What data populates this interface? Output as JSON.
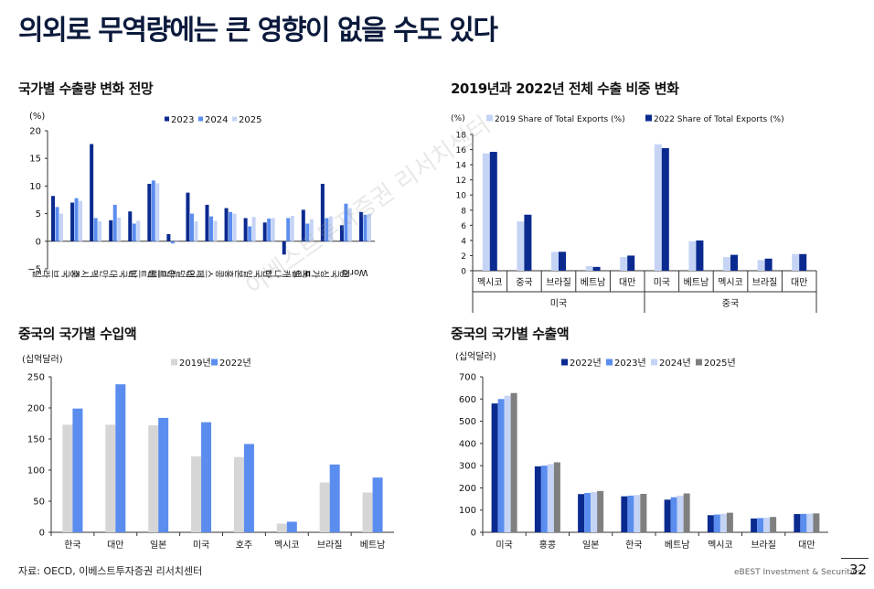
{
  "page": {
    "title": "의외로 무역량에는 큰 영향이 없을 수도 있다",
    "source": "자료: OECD, 이베스트투자증권 리서치센터",
    "brand": "eBEST Investment & Securities",
    "page_number": "32",
    "watermark": "이베스트투자증권 리서치센터"
  },
  "chart_data": [
    {
      "type": "bar",
      "title": "국가별 수출량 변화 전망",
      "ylabel": "(%)",
      "ylim": [
        -5,
        20
      ],
      "yticks": [
        -5,
        0,
        5,
        10,
        15,
        20
      ],
      "categories": [
        "브라질",
        "중국",
        "멕시코",
        "대만",
        "미국",
        "베트남",
        "아르헨",
        "네덜란드",
        "스페인",
        "홍콩",
        "일본",
        "한국",
        "캐나다",
        "독일",
        "싱가포르",
        "영국",
        "World"
      ],
      "series": [
        {
          "name": "2023",
          "color": "#0a2a8f",
          "values": [
            8.2,
            7.0,
            17.6,
            3.8,
            5.4,
            10.4,
            1.3,
            8.8,
            6.6,
            6.0,
            4.2,
            3.4,
            -2.4,
            5.7,
            10.4,
            2.9,
            5.3
          ]
        },
        {
          "name": "2024",
          "color": "#5b8def",
          "values": [
            6.2,
            7.8,
            4.2,
            6.6,
            3.2,
            11.0,
            -0.4,
            5.0,
            4.5,
            5.3,
            2.7,
            4.1,
            4.2,
            3.2,
            4.2,
            6.8,
            4.8
          ]
        },
        {
          "name": "2025",
          "color": "#c5d4f5",
          "values": [
            5.0,
            7.3,
            3.6,
            4.3,
            3.7,
            10.5,
            -0.2,
            3.6,
            3.7,
            5.0,
            4.4,
            4.2,
            4.6,
            4.0,
            4.5,
            6.0,
            5.0
          ]
        }
      ]
    },
    {
      "type": "bar",
      "title": "2019년과 2022년 전체 수출 비중 변화",
      "ylabel": "(%)",
      "ylim": [
        0,
        18
      ],
      "yticks": [
        0,
        2,
        4,
        6,
        8,
        10,
        12,
        14,
        16,
        18
      ],
      "categories": [
        "멕시코",
        "중국",
        "브라질",
        "베트남",
        "대만",
        "미국",
        "베트남",
        "멕시코",
        "브라질",
        "대만"
      ],
      "groups": [
        {
          "label": "미국",
          "categories": [
            "멕시코",
            "중국",
            "브라질",
            "베트남",
            "대만"
          ]
        },
        {
          "label": "중국",
          "categories": [
            "미국",
            "베트남",
            "멕시코",
            "브라질",
            "대만"
          ]
        }
      ],
      "series": [
        {
          "name": "2019 Share of Total Exports (%)",
          "color": "#c5d4f5",
          "values": [
            15.5,
            6.5,
            2.5,
            0.6,
            1.8,
            16.7,
            3.9,
            1.8,
            1.4,
            2.2
          ]
        },
        {
          "name": "2022 Share of Total Exports (%)",
          "color": "#0a2a8f",
          "values": [
            15.7,
            7.4,
            2.5,
            0.5,
            2.0,
            16.2,
            4.0,
            2.1,
            1.6,
            2.2
          ]
        }
      ]
    },
    {
      "type": "bar",
      "title": "중국의 국가별 수입액",
      "ylabel": "(십억달러)",
      "ylim": [
        0,
        250
      ],
      "yticks": [
        0,
        50,
        100,
        150,
        200,
        250
      ],
      "categories": [
        "한국",
        "대만",
        "일본",
        "미국",
        "호주",
        "멕시코",
        "브라질",
        "베트남"
      ],
      "series": [
        {
          "name": "2019년",
          "color": "#d6d6d6",
          "values": [
            173,
            173,
            172,
            122,
            121,
            14,
            80,
            64
          ]
        },
        {
          "name": "2022년",
          "color": "#5b8def",
          "values": [
            199,
            238,
            184,
            177,
            142,
            17,
            109,
            88
          ]
        }
      ]
    },
    {
      "type": "bar",
      "title": "중국의 국가별 수출액",
      "ylabel": "(십억달러)",
      "ylim": [
        0,
        700
      ],
      "yticks": [
        0,
        100,
        200,
        300,
        400,
        500,
        600,
        700
      ],
      "categories": [
        "미국",
        "홍콩",
        "일본",
        "한국",
        "베트남",
        "멕시코",
        "브라질",
        "대만"
      ],
      "series": [
        {
          "name": "2022년",
          "color": "#0a2a8f",
          "values": [
            580,
            297,
            172,
            162,
            147,
            77,
            62,
            82
          ]
        },
        {
          "name": "2023년",
          "color": "#5b8def",
          "values": [
            600,
            300,
            177,
            165,
            158,
            80,
            64,
            83
          ]
        },
        {
          "name": "2024년",
          "color": "#c5d4f5",
          "values": [
            615,
            307,
            181,
            168,
            165,
            83,
            66,
            84
          ]
        },
        {
          "name": "2025년",
          "color": "#7f7f7f",
          "values": [
            627,
            315,
            186,
            173,
            175,
            88,
            69,
            85
          ]
        }
      ]
    }
  ]
}
